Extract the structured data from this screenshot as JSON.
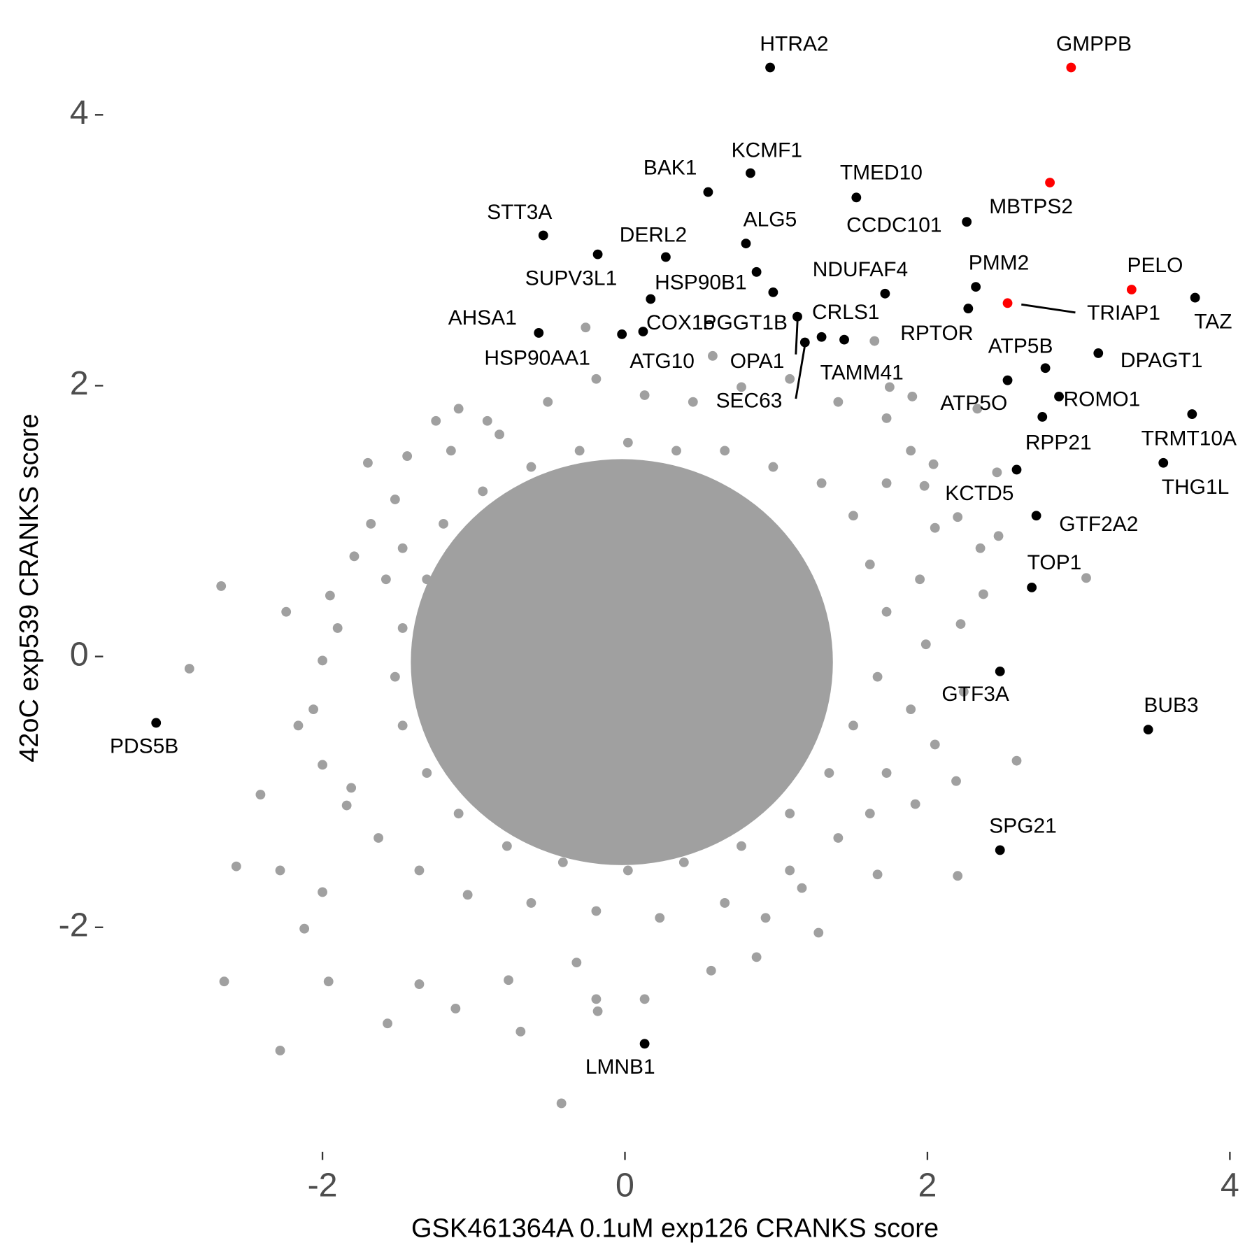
{
  "chart_data": {
    "type": "scatter",
    "x_label": "GSK461364A 0.1uM exp126 CRANKS score",
    "y_label": "42oC exp539 CRANKS score",
    "xlim": [
      -3.44,
      4.07
    ],
    "ylim": [
      -3.48,
      4.67
    ],
    "xticks": [
      -2,
      0,
      2,
      4
    ],
    "yticks": [
      -2,
      0,
      2,
      4
    ],
    "series": [
      {
        "color": "#a0a0a0",
        "x": [
          -2.67,
          -2.88,
          -2.65,
          -2.57,
          -2.28,
          -2.41,
          -2.28,
          -1.57,
          -0.69,
          -0.42,
          -1.7,
          -1.44,
          -1.25,
          -1.1,
          -0.91,
          -0.26,
          0.58,
          1.65,
          1.75,
          1.9,
          2.04,
          3.05,
          2.59,
          2.19,
          2.2,
          2.47,
          2.35,
          2.2,
          2.33,
          2.46,
          1.67,
          1.28,
          0.87,
          1.17,
          -0.19,
          -0.18,
          0.13,
          -1.96,
          -2.12,
          -2.0,
          -1.81,
          -1.36,
          -1.12,
          -0.77,
          -0.32,
          0.57,
          0.93,
          1.62,
          1.92,
          2.05,
          2.24,
          2.22,
          2.37,
          1.95,
          2.05,
          1.98,
          -2.16,
          -2.24,
          -1.95,
          -1.79,
          -1.68,
          -1.52,
          -1.15,
          -0.83,
          -0.51,
          -0.19,
          0.13,
          0.45,
          0.77,
          1.09,
          1.41,
          1.73,
          1.89,
          1.73,
          1.99,
          1.89,
          1.73,
          1.41,
          1.09,
          0.66,
          0.23,
          -0.19,
          -0.62,
          -1.04,
          -1.36,
          -1.63,
          -1.84,
          -2.0,
          -2.06,
          -2.0,
          -1.9,
          -1.58,
          -1.47,
          -1.2,
          -0.94,
          -0.62,
          -0.3,
          0.02,
          0.34,
          0.66,
          0.98,
          1.3,
          1.51,
          1.62,
          1.73,
          1.67,
          1.51,
          1.35,
          1.09,
          0.77,
          0.39,
          0.02,
          -0.41,
          -0.78,
          -1.1,
          -1.31,
          -1.47,
          -1.52,
          -1.47,
          -1.31
        ],
        "values": [
          0.52,
          -0.09,
          -2.4,
          -1.55,
          -2.91,
          -1.02,
          -1.58,
          -2.71,
          -2.77,
          -3.3,
          1.43,
          1.48,
          1.74,
          1.83,
          1.74,
          2.43,
          2.22,
          2.33,
          1.99,
          1.92,
          1.42,
          0.58,
          -0.77,
          -0.92,
          -1.62,
          0.89,
          0.8,
          1.03,
          1.83,
          1.36,
          -1.61,
          -2.04,
          -2.22,
          -1.71,
          -2.53,
          -2.62,
          -2.53,
          -2.4,
          -2.01,
          -1.74,
          -0.97,
          -2.42,
          -2.6,
          -2.39,
          -2.26,
          -2.32,
          -1.93,
          -1.16,
          -1.09,
          -0.65,
          -0.26,
          0.24,
          0.46,
          0.57,
          0.95,
          1.26,
          -0.51,
          0.33,
          0.45,
          0.74,
          0.98,
          1.16,
          1.52,
          1.64,
          1.88,
          2.05,
          1.93,
          1.88,
          1.99,
          2.05,
          1.88,
          1.76,
          1.52,
          1.28,
          0.09,
          -0.39,
          -0.86,
          -1.34,
          -1.58,
          -1.82,
          -1.93,
          -1.88,
          -1.82,
          -1.76,
          -1.58,
          -1.34,
          -1.1,
          -0.8,
          -0.39,
          -0.03,
          0.21,
          0.57,
          0.8,
          0.98,
          1.22,
          1.4,
          1.52,
          1.58,
          1.52,
          1.52,
          1.4,
          1.28,
          1.04,
          0.68,
          0.33,
          -0.15,
          -0.51,
          -0.86,
          -1.16,
          -1.4,
          -1.52,
          -1.58,
          -1.52,
          -1.4,
          -1.16,
          -0.86,
          -0.51,
          -0.15,
          0.21,
          0.57
        ]
      },
      {
        "color": "#000000",
        "labels": [
          "HTRA2",
          "KCMF1",
          "BAK1",
          "TMED10",
          "CCDC101",
          "STT3A",
          "ALG5",
          "SUPV3L1",
          "DERL2",
          "HSP90B1",
          "NDUFAF4",
          "PMM2",
          "TAZ",
          "RPTOR",
          "ATP5B",
          "DPAGT1",
          "ATP5O",
          "ROMO1",
          "TRMT10A",
          "RPP21",
          "THG1L",
          "KCTD5",
          "GTF2A2",
          "TOP1",
          "GTF3A",
          "BUB3",
          "SPG21",
          "PDS5B",
          "LMNB1",
          "AHSA1",
          "HSP90AA1",
          "ATG10",
          "COX15",
          "PGGT1B",
          "OPA1",
          "SEC63",
          "CRLS1",
          "TAMM41"
        ],
        "x": [
          0.96,
          0.83,
          0.55,
          1.53,
          2.26,
          -0.54,
          0.8,
          -0.18,
          0.27,
          0.87,
          1.72,
          2.32,
          3.77,
          2.27,
          2.78,
          3.13,
          2.53,
          2.87,
          3.75,
          2.76,
          3.56,
          2.59,
          2.72,
          2.69,
          2.48,
          3.46,
          2.48,
          -3.1,
          0.13,
          -0.57,
          -0.02,
          0.12,
          0.17,
          0.98,
          1.14,
          1.19,
          1.3,
          1.45
        ],
        "values": [
          4.35,
          3.57,
          3.43,
          3.39,
          3.21,
          3.11,
          3.05,
          2.97,
          2.95,
          2.84,
          2.68,
          2.73,
          2.65,
          2.57,
          2.13,
          2.24,
          2.04,
          1.92,
          1.79,
          1.77,
          1.43,
          1.38,
          1.04,
          0.51,
          -0.11,
          -0.54,
          -1.43,
          -0.49,
          -2.86,
          2.39,
          2.38,
          2.4,
          2.64,
          2.69,
          2.51,
          2.32,
          2.36,
          2.34
        ]
      },
      {
        "color": "#ff0000",
        "labels": [
          "GMPPB",
          "MBTPS2",
          "PELO",
          "TRIAP1"
        ],
        "x": [
          2.95,
          2.81,
          3.35,
          2.53
        ],
        "values": [
          4.35,
          3.5,
          2.71,
          2.61
        ]
      }
    ]
  }
}
